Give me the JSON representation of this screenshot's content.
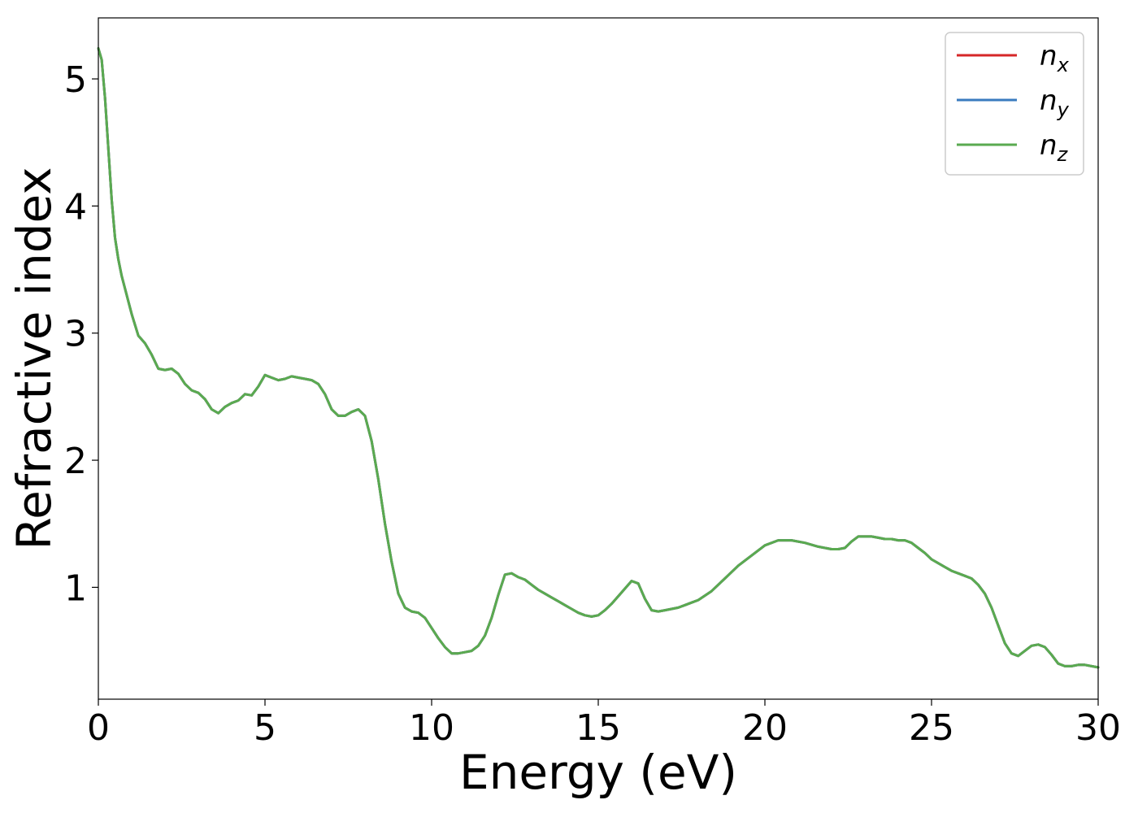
{
  "chart_data": {
    "type": "line",
    "xlabel": "Energy (eV)",
    "ylabel": "Refractive index",
    "xlim": [
      0,
      30
    ],
    "ylim": [
      0.12,
      5.48
    ],
    "xticks": [
      0,
      5,
      10,
      15,
      20,
      25,
      30
    ],
    "xtick_labels": [
      "0",
      "5",
      "10",
      "15",
      "20",
      "25",
      "30"
    ],
    "yticks": [
      1,
      2,
      3,
      4,
      5
    ],
    "ytick_labels": [
      "1",
      "2",
      "3",
      "4",
      "5"
    ],
    "grid": false,
    "legend_position": "top-right",
    "x": [
      0,
      0.1,
      0.2,
      0.3,
      0.4,
      0.5,
      0.6,
      0.7,
      0.8,
      1.0,
      1.2,
      1.4,
      1.6,
      1.8,
      2.0,
      2.2,
      2.4,
      2.6,
      2.8,
      3.0,
      3.2,
      3.4,
      3.6,
      3.8,
      4.0,
      4.2,
      4.4,
      4.6,
      4.8,
      5.0,
      5.2,
      5.4,
      5.6,
      5.8,
      6.0,
      6.2,
      6.4,
      6.6,
      6.8,
      7.0,
      7.2,
      7.4,
      7.6,
      7.8,
      8.0,
      8.2,
      8.4,
      8.6,
      8.8,
      9.0,
      9.2,
      9.4,
      9.6,
      9.8,
      10.0,
      10.2,
      10.4,
      10.6,
      10.8,
      11.0,
      11.2,
      11.4,
      11.6,
      11.8,
      12.0,
      12.2,
      12.4,
      12.6,
      12.8,
      13.0,
      13.2,
      13.4,
      13.6,
      13.8,
      14.0,
      14.2,
      14.4,
      14.6,
      14.8,
      15.0,
      15.2,
      15.4,
      15.6,
      15.8,
      16.0,
      16.2,
      16.4,
      16.6,
      16.8,
      17.0,
      17.2,
      17.4,
      17.6,
      17.8,
      18.0,
      18.4,
      18.8,
      19.2,
      19.6,
      20.0,
      20.4,
      20.8,
      21.2,
      21.6,
      22.0,
      22.2,
      22.4,
      22.6,
      22.8,
      23.0,
      23.2,
      23.4,
      23.6,
      23.8,
      24.0,
      24.2,
      24.4,
      24.6,
      24.8,
      25.0,
      25.2,
      25.4,
      25.6,
      25.8,
      26.0,
      26.2,
      26.4,
      26.6,
      26.8,
      27.0,
      27.2,
      27.4,
      27.6,
      27.8,
      28.0,
      28.2,
      28.4,
      28.6,
      28.8,
      29.0,
      29.2,
      29.4,
      29.6,
      29.8,
      30.0
    ],
    "series": [
      {
        "name": "n_x",
        "color": "#d62728",
        "values": [
          5.24,
          5.15,
          4.85,
          4.45,
          4.05,
          3.75,
          3.58,
          3.45,
          3.35,
          3.15,
          2.98,
          2.92,
          2.83,
          2.72,
          2.71,
          2.72,
          2.68,
          2.6,
          2.55,
          2.53,
          2.48,
          2.4,
          2.37,
          2.42,
          2.45,
          2.47,
          2.52,
          2.51,
          2.58,
          2.67,
          2.65,
          2.63,
          2.64,
          2.66,
          2.65,
          2.64,
          2.63,
          2.6,
          2.52,
          2.4,
          2.35,
          2.35,
          2.38,
          2.4,
          2.35,
          2.15,
          1.85,
          1.5,
          1.2,
          0.95,
          0.84,
          0.81,
          0.8,
          0.76,
          0.68,
          0.6,
          0.53,
          0.48,
          0.48,
          0.49,
          0.5,
          0.54,
          0.62,
          0.76,
          0.94,
          1.1,
          1.11,
          1.08,
          1.06,
          1.02,
          0.98,
          0.95,
          0.92,
          0.89,
          0.86,
          0.83,
          0.8,
          0.78,
          0.77,
          0.78,
          0.82,
          0.87,
          0.93,
          0.99,
          1.05,
          1.03,
          0.91,
          0.82,
          0.81,
          0.82,
          0.83,
          0.84,
          0.86,
          0.88,
          0.9,
          0.97,
          1.07,
          1.17,
          1.25,
          1.33,
          1.37,
          1.37,
          1.35,
          1.32,
          1.3,
          1.3,
          1.31,
          1.36,
          1.4,
          1.4,
          1.4,
          1.39,
          1.38,
          1.38,
          1.37,
          1.37,
          1.35,
          1.31,
          1.27,
          1.22,
          1.19,
          1.16,
          1.13,
          1.11,
          1.09,
          1.07,
          1.02,
          0.95,
          0.84,
          0.7,
          0.56,
          0.48,
          0.46,
          0.5,
          0.54,
          0.55,
          0.53,
          0.47,
          0.4,
          0.38,
          0.38,
          0.39,
          0.39,
          0.38,
          0.37
        ]
      },
      {
        "name": "n_y",
        "color": "#3a7bbf",
        "values": [
          5.24,
          5.15,
          4.85,
          4.45,
          4.05,
          3.75,
          3.58,
          3.45,
          3.35,
          3.15,
          2.98,
          2.92,
          2.83,
          2.72,
          2.71,
          2.72,
          2.68,
          2.6,
          2.55,
          2.53,
          2.48,
          2.4,
          2.37,
          2.42,
          2.45,
          2.47,
          2.52,
          2.51,
          2.58,
          2.67,
          2.65,
          2.63,
          2.64,
          2.66,
          2.65,
          2.64,
          2.63,
          2.6,
          2.52,
          2.4,
          2.35,
          2.35,
          2.38,
          2.4,
          2.35,
          2.15,
          1.85,
          1.5,
          1.2,
          0.95,
          0.84,
          0.81,
          0.8,
          0.76,
          0.68,
          0.6,
          0.53,
          0.48,
          0.48,
          0.49,
          0.5,
          0.54,
          0.62,
          0.76,
          0.94,
          1.1,
          1.11,
          1.08,
          1.06,
          1.02,
          0.98,
          0.95,
          0.92,
          0.89,
          0.86,
          0.83,
          0.8,
          0.78,
          0.77,
          0.78,
          0.82,
          0.87,
          0.93,
          0.99,
          1.05,
          1.03,
          0.91,
          0.82,
          0.81,
          0.82,
          0.83,
          0.84,
          0.86,
          0.88,
          0.9,
          0.97,
          1.07,
          1.17,
          1.25,
          1.33,
          1.37,
          1.37,
          1.35,
          1.32,
          1.3,
          1.3,
          1.31,
          1.36,
          1.4,
          1.4,
          1.4,
          1.39,
          1.38,
          1.38,
          1.37,
          1.37,
          1.35,
          1.31,
          1.27,
          1.22,
          1.19,
          1.16,
          1.13,
          1.11,
          1.09,
          1.07,
          1.02,
          0.95,
          0.84,
          0.7,
          0.56,
          0.48,
          0.46,
          0.5,
          0.54,
          0.55,
          0.53,
          0.47,
          0.4,
          0.38,
          0.38,
          0.39,
          0.39,
          0.38,
          0.37
        ]
      },
      {
        "name": "n_z",
        "color": "#5aaa50",
        "values": [
          5.24,
          5.15,
          4.85,
          4.45,
          4.05,
          3.75,
          3.58,
          3.45,
          3.35,
          3.15,
          2.98,
          2.92,
          2.83,
          2.72,
          2.71,
          2.72,
          2.68,
          2.6,
          2.55,
          2.53,
          2.48,
          2.4,
          2.37,
          2.42,
          2.45,
          2.47,
          2.52,
          2.51,
          2.58,
          2.67,
          2.65,
          2.63,
          2.64,
          2.66,
          2.65,
          2.64,
          2.63,
          2.6,
          2.52,
          2.4,
          2.35,
          2.35,
          2.38,
          2.4,
          2.35,
          2.15,
          1.85,
          1.5,
          1.2,
          0.95,
          0.84,
          0.81,
          0.8,
          0.76,
          0.68,
          0.6,
          0.53,
          0.48,
          0.48,
          0.49,
          0.5,
          0.54,
          0.62,
          0.76,
          0.94,
          1.1,
          1.11,
          1.08,
          1.06,
          1.02,
          0.98,
          0.95,
          0.92,
          0.89,
          0.86,
          0.83,
          0.8,
          0.78,
          0.77,
          0.78,
          0.82,
          0.87,
          0.93,
          0.99,
          1.05,
          1.03,
          0.91,
          0.82,
          0.81,
          0.82,
          0.83,
          0.84,
          0.86,
          0.88,
          0.9,
          0.97,
          1.07,
          1.17,
          1.25,
          1.33,
          1.37,
          1.37,
          1.35,
          1.32,
          1.3,
          1.3,
          1.31,
          1.36,
          1.4,
          1.4,
          1.4,
          1.39,
          1.38,
          1.38,
          1.37,
          1.37,
          1.35,
          1.31,
          1.27,
          1.22,
          1.19,
          1.16,
          1.13,
          1.11,
          1.09,
          1.07,
          1.02,
          0.95,
          0.84,
          0.7,
          0.56,
          0.48,
          0.46,
          0.5,
          0.54,
          0.55,
          0.53,
          0.47,
          0.4,
          0.38,
          0.38,
          0.39,
          0.39,
          0.38,
          0.37
        ]
      }
    ],
    "legend": [
      {
        "base": "n",
        "sub": "x",
        "color": "#d62728"
      },
      {
        "base": "n",
        "sub": "y",
        "color": "#3a7bbf"
      },
      {
        "base": "n",
        "sub": "z",
        "color": "#5aaa50"
      }
    ]
  }
}
